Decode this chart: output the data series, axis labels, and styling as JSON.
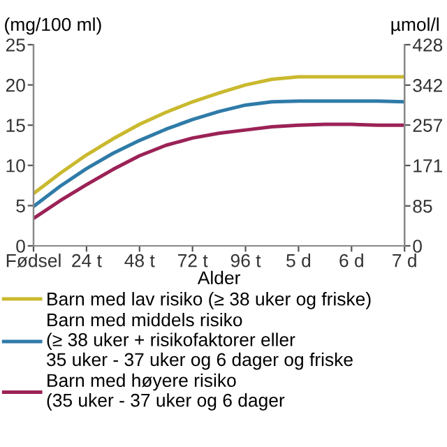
{
  "chart_data": {
    "type": "line",
    "xlabel": "Alder",
    "ylabel": "(mg/100 ml)",
    "y2label": "µmol/l",
    "categories": [
      "Fødsel",
      null,
      "24 t",
      null,
      "48 t",
      null,
      "72 t",
      null,
      "96 t",
      null,
      "5 d",
      null,
      "6 d",
      null,
      "7 d"
    ],
    "ylim": [
      0,
      25
    ],
    "yticks": [
      0,
      5,
      10,
      15,
      20,
      25
    ],
    "y2lim": [
      0,
      428
    ],
    "y2ticks": [
      0,
      85,
      171,
      257,
      342,
      428
    ],
    "grid": false,
    "legend": "bottom",
    "marker": "none",
    "line_style": "solid",
    "series": [
      {
        "name": "Barn med lav risiko (≥ 38 uker og friske)",
        "color": "#c9b92e",
        "values": [
          6.5,
          9.0,
          11.3,
          13.3,
          15.1,
          16.6,
          17.9,
          19.0,
          20.0,
          20.7,
          21.0,
          21.0,
          21.0,
          21.0,
          21.0
        ]
      },
      {
        "name": "Barn med middels risiko\n(≥ 38 uker + risikofaktorer eller\n35 uker - 37 uker og 6 dager og friske",
        "color": "#2f7ba8",
        "values": [
          4.9,
          7.4,
          9.6,
          11.5,
          13.1,
          14.5,
          15.7,
          16.7,
          17.5,
          17.9,
          18.0,
          18.0,
          18.0,
          18.0,
          17.9
        ]
      },
      {
        "name": "Barn med høyere risiko\n(35 uker - 37 uker og 6 dager",
        "color": "#9b2256",
        "values": [
          3.4,
          5.6,
          7.6,
          9.5,
          11.2,
          12.5,
          13.4,
          14.0,
          14.4,
          14.8,
          15.0,
          15.1,
          15.1,
          15.0,
          15.0
        ]
      }
    ]
  }
}
